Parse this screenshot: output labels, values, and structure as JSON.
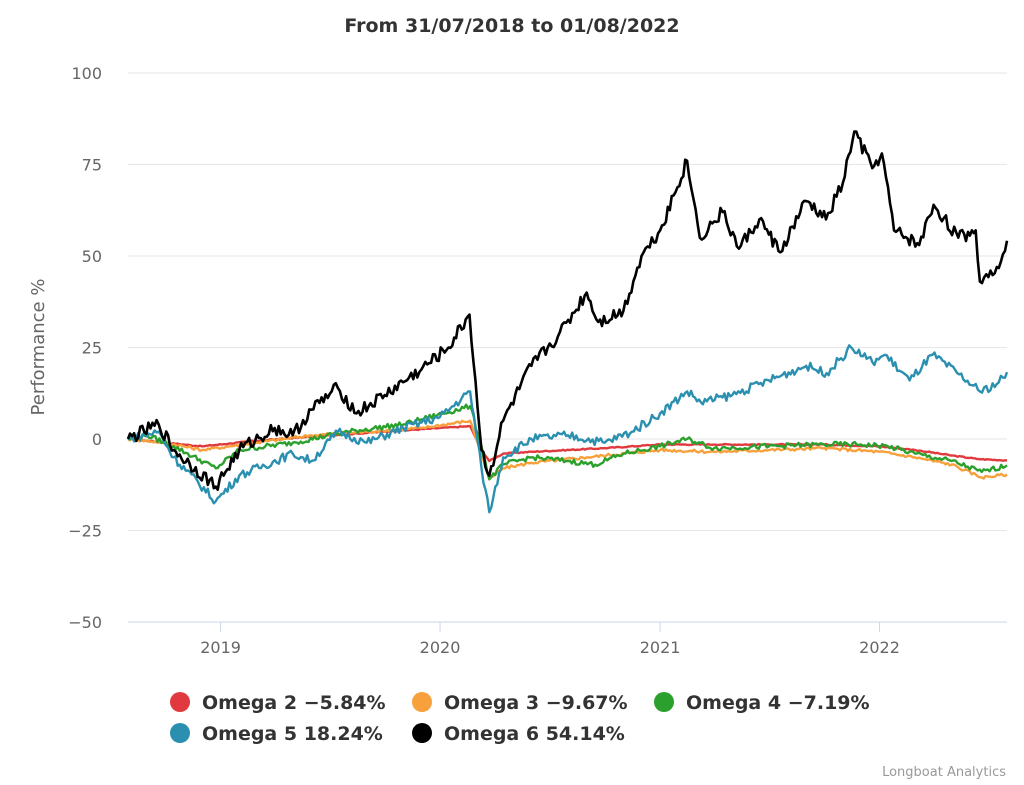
{
  "chart_data": {
    "type": "line",
    "title": "From 31/07/2018 to 01/08/2022",
    "ylabel": "Performance %",
    "xlabel": "",
    "xlim": [
      "2018-07-31",
      "2022-08-01"
    ],
    "ylim": [
      -50,
      100
    ],
    "y_ticks": [
      100,
      75,
      50,
      25,
      0,
      -25,
      -50
    ],
    "y_tick_labels": [
      "100",
      "75",
      "50",
      "25",
      "0",
      "−25",
      "−50"
    ],
    "x_ticks": [
      "2019-01-01",
      "2020-01-01",
      "2021-01-01",
      "2022-01-01"
    ],
    "x_tick_labels": [
      "2019",
      "2020",
      "2021",
      "2022"
    ],
    "grid": true,
    "legend_position": "bottom",
    "credit": "Longboat Analytics",
    "series": [
      {
        "name": "Omega 2",
        "legend_label": "Omega 2 −5.84%",
        "color": "#e03a3e",
        "points": [
          [
            "2018-07-31",
            0
          ],
          [
            "2018-10-01",
            -1
          ],
          [
            "2018-12-01",
            -2
          ],
          [
            "2019-03-01",
            -0.5
          ],
          [
            "2019-07-01",
            1
          ],
          [
            "2019-10-01",
            2
          ],
          [
            "2020-01-01",
            3
          ],
          [
            "2020-02-20",
            3.5
          ],
          [
            "2020-03-10",
            -3
          ],
          [
            "2020-03-23",
            -6
          ],
          [
            "2020-04-15",
            -4
          ],
          [
            "2020-06-01",
            -3.5
          ],
          [
            "2020-10-01",
            -2.5
          ],
          [
            "2021-01-01",
            -1.5
          ],
          [
            "2021-04-01",
            -1.5
          ],
          [
            "2021-07-01",
            -1.5
          ],
          [
            "2021-10-01",
            -1.5
          ],
          [
            "2022-01-01",
            -2
          ],
          [
            "2022-03-01",
            -3
          ],
          [
            "2022-05-01",
            -4.5
          ],
          [
            "2022-06-15",
            -5.5
          ],
          [
            "2022-08-01",
            -5.84
          ]
        ]
      },
      {
        "name": "Omega 3",
        "legend_label": "Omega 3 −9.67%",
        "color": "#f7a03c",
        "points": [
          [
            "2018-07-31",
            0
          ],
          [
            "2018-10-01",
            -1
          ],
          [
            "2018-12-01",
            -3
          ],
          [
            "2019-03-01",
            -1
          ],
          [
            "2019-06-01",
            1
          ],
          [
            "2019-09-01",
            2
          ],
          [
            "2019-12-01",
            3
          ],
          [
            "2020-02-20",
            5
          ],
          [
            "2020-03-10",
            -4
          ],
          [
            "2020-03-23",
            -11
          ],
          [
            "2020-04-15",
            -8
          ],
          [
            "2020-06-01",
            -6.5
          ],
          [
            "2020-09-01",
            -5
          ],
          [
            "2021-01-01",
            -3
          ],
          [
            "2021-04-01",
            -3.5
          ],
          [
            "2021-07-01",
            -3
          ],
          [
            "2021-10-01",
            -2.5
          ],
          [
            "2022-01-01",
            -3.5
          ],
          [
            "2022-03-01",
            -5
          ],
          [
            "2022-05-01",
            -7
          ],
          [
            "2022-06-20",
            -10.5
          ],
          [
            "2022-08-01",
            -9.67
          ]
        ]
      },
      {
        "name": "Omega 4",
        "legend_label": "Omega 4 −7.19%",
        "color": "#2ca02c",
        "points": [
          [
            "2018-07-31",
            0
          ],
          [
            "2018-09-01",
            1
          ],
          [
            "2018-10-15",
            -2
          ],
          [
            "2018-12-24",
            -8
          ],
          [
            "2019-02-01",
            -3
          ],
          [
            "2019-05-01",
            -1
          ],
          [
            "2019-08-01",
            2
          ],
          [
            "2019-11-01",
            4
          ],
          [
            "2020-02-20",
            9
          ],
          [
            "2020-03-10",
            -2
          ],
          [
            "2020-03-23",
            -11
          ],
          [
            "2020-04-15",
            -7
          ],
          [
            "2020-06-01",
            -5
          ],
          [
            "2020-08-01",
            -6
          ],
          [
            "2020-09-15",
            -7
          ],
          [
            "2020-11-01",
            -4
          ],
          [
            "2021-01-01",
            -2
          ],
          [
            "2021-02-15",
            0
          ],
          [
            "2021-04-01",
            -2.5
          ],
          [
            "2021-07-01",
            -2
          ],
          [
            "2021-10-01",
            -1.5
          ],
          [
            "2021-12-01",
            -1.5
          ],
          [
            "2022-01-15",
            -2
          ],
          [
            "2022-03-01",
            -4
          ],
          [
            "2022-05-01",
            -6
          ],
          [
            "2022-06-20",
            -9
          ],
          [
            "2022-08-01",
            -7.19
          ]
        ]
      },
      {
        "name": "Omega 5",
        "legend_label": "Omega 5 18.24%",
        "color": "#2b90b0",
        "points": [
          [
            "2018-07-31",
            0
          ],
          [
            "2018-09-20",
            2
          ],
          [
            "2018-10-15",
            -5
          ],
          [
            "2018-12-24",
            -17
          ],
          [
            "2019-02-01",
            -10
          ],
          [
            "2019-05-01",
            -4
          ],
          [
            "2019-06-01",
            -6
          ],
          [
            "2019-07-15",
            2
          ],
          [
            "2019-09-01",
            -1
          ],
          [
            "2019-11-01",
            3
          ],
          [
            "2020-01-01",
            6
          ],
          [
            "2020-02-20",
            13
          ],
          [
            "2020-03-10",
            -8
          ],
          [
            "2020-03-23",
            -20
          ],
          [
            "2020-04-15",
            -5
          ],
          [
            "2020-06-01",
            0
          ],
          [
            "2020-08-01",
            1
          ],
          [
            "2020-10-01",
            -1
          ],
          [
            "2020-11-15",
            2
          ],
          [
            "2021-01-01",
            7
          ],
          [
            "2021-02-15",
            13
          ],
          [
            "2021-03-10",
            10
          ],
          [
            "2021-05-01",
            12
          ],
          [
            "2021-07-01",
            16
          ],
          [
            "2021-09-01",
            20
          ],
          [
            "2021-10-05",
            18
          ],
          [
            "2021-11-15",
            25
          ],
          [
            "2021-12-20",
            21
          ],
          [
            "2022-01-10",
            23
          ],
          [
            "2022-02-20",
            16
          ],
          [
            "2022-03-30",
            23
          ],
          [
            "2022-05-10",
            18
          ],
          [
            "2022-06-17",
            13
          ],
          [
            "2022-07-15",
            15
          ],
          [
            "2022-08-01",
            18.24
          ]
        ]
      },
      {
        "name": "Omega 6",
        "legend_label": "Omega 6 54.14%",
        "color": "#000000",
        "points": [
          [
            "2018-07-31",
            0
          ],
          [
            "2018-09-20",
            4
          ],
          [
            "2018-10-15",
            -3
          ],
          [
            "2018-12-24",
            -13
          ],
          [
            "2019-02-01",
            -3
          ],
          [
            "2019-04-01",
            3
          ],
          [
            "2019-05-01",
            1
          ],
          [
            "2019-06-01",
            8
          ],
          [
            "2019-07-15",
            14
          ],
          [
            "2019-08-15",
            7
          ],
          [
            "2019-10-01",
            12
          ],
          [
            "2019-12-01",
            19
          ],
          [
            "2020-01-15",
            25
          ],
          [
            "2020-02-19",
            34
          ],
          [
            "2020-03-10",
            -3
          ],
          [
            "2020-03-23",
            -10
          ],
          [
            "2020-04-15",
            5
          ],
          [
            "2020-06-01",
            20
          ],
          [
            "2020-07-15",
            28
          ],
          [
            "2020-09-01",
            40
          ],
          [
            "2020-09-20",
            32
          ],
          [
            "2020-11-01",
            35
          ],
          [
            "2020-12-01",
            50
          ],
          [
            "2021-01-01",
            57
          ],
          [
            "2021-02-15",
            76
          ],
          [
            "2021-03-08",
            55
          ],
          [
            "2021-04-15",
            62
          ],
          [
            "2021-05-12",
            52
          ],
          [
            "2021-06-15",
            60
          ],
          [
            "2021-07-20",
            51
          ],
          [
            "2021-09-01",
            65
          ],
          [
            "2021-10-04",
            60
          ],
          [
            "2021-11-01",
            70
          ],
          [
            "2021-11-20",
            84
          ],
          [
            "2021-12-20",
            74
          ],
          [
            "2022-01-05",
            78
          ],
          [
            "2022-01-25",
            57
          ],
          [
            "2022-03-08",
            53
          ],
          [
            "2022-04-01",
            64
          ],
          [
            "2022-05-12",
            55
          ],
          [
            "2022-06-10",
            57
          ],
          [
            "2022-06-17",
            43
          ],
          [
            "2022-07-15",
            47
          ],
          [
            "2022-08-01",
            54.14
          ]
        ]
      }
    ]
  }
}
